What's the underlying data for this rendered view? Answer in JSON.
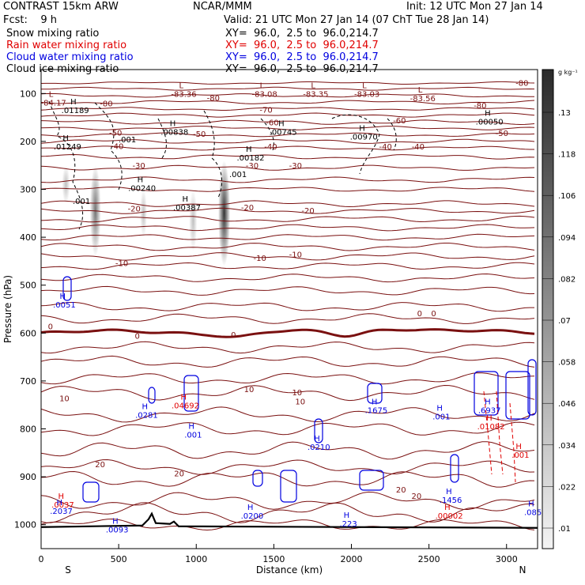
{
  "header": {
    "model": "CONTRAST 15km ARW",
    "org": "NCAR/MMM",
    "init": "Init: 12 UTC Mon 27 Jan 14",
    "fcst": "Fcst:    9 h",
    "valid": "Valid: 21 UTC Mon 27 Jan 14 (07 ChT Tue 28 Jan 14)",
    "fields": [
      {
        "label": "Snow mixing ratio",
        "xy": "XY=  96.0,  2.5 to  96.0,214.7",
        "color": "#000000"
      },
      {
        "label": "Rain water mixing ratio",
        "xy": "XY=  96.0,  2.5 to  96.0,214.7",
        "color": "#e00000"
      },
      {
        "label": "Cloud water mixing ratio",
        "xy": "XY=  96.0,  2.5 to  96.0,214.7",
        "color": "#0000e0"
      },
      {
        "label": "Cloud ice mixing ratio",
        "xy": "XY=  96.0,  2.5 to  96.0,214.7",
        "color": "#000000"
      }
    ]
  },
  "chart_data": {
    "type": "heatmap",
    "xlabel": "Distance (km)",
    "ylabel": "Pressure (hPa)",
    "xlim": [
      0,
      3200
    ],
    "ylim": [
      1050,
      50
    ],
    "x_ticks": [
      0,
      500,
      1000,
      1500,
      2000,
      2500,
      3000
    ],
    "y_ticks": [
      100,
      200,
      300,
      400,
      500,
      600,
      700,
      800,
      900,
      1000
    ],
    "x_end_labels": {
      "left": "S",
      "right": "N"
    },
    "colorbar": {
      "unit": "g kg⁻¹",
      "ticks": [
        ".01",
        ".022",
        ".034",
        ".046",
        ".058",
        ".07",
        ".082",
        ".094",
        ".106",
        ".118",
        ".13"
      ]
    },
    "temperature_contours": {
      "color": "#7a1010",
      "levels": [
        -80,
        -70,
        -60,
        -50,
        -40,
        -30,
        -20,
        -10,
        0,
        10,
        20
      ],
      "labels": [
        {
          "text": "-80",
          "x": 420,
          "p": 127
        },
        {
          "text": "-80",
          "x": 1110,
          "p": 115
        },
        {
          "text": "-80",
          "x": 2830,
          "p": 131
        },
        {
          "text": "-80",
          "x": 3100,
          "p": 84
        },
        {
          "text": "-70",
          "x": 1450,
          "p": 140
        },
        {
          "text": "-60",
          "x": 1490,
          "p": 166
        },
        {
          "text": "-60",
          "x": 2310,
          "p": 162
        },
        {
          "text": "-50",
          "x": 480,
          "p": 188
        },
        {
          "text": "-50",
          "x": 1020,
          "p": 190
        },
        {
          "text": "-50",
          "x": 2970,
          "p": 189
        },
        {
          "text": "-40",
          "x": 490,
          "p": 216
        },
        {
          "text": "-40",
          "x": 1480,
          "p": 217
        },
        {
          "text": "-40",
          "x": 2220,
          "p": 217
        },
        {
          "text": "-40",
          "x": 2430,
          "p": 217
        },
        {
          "text": "-30",
          "x": 630,
          "p": 256
        },
        {
          "text": "-30",
          "x": 1360,
          "p": 256
        },
        {
          "text": "-30",
          "x": 1640,
          "p": 256
        },
        {
          "text": "-20",
          "x": 600,
          "p": 346
        },
        {
          "text": "-20",
          "x": 1330,
          "p": 344
        },
        {
          "text": "-20",
          "x": 1720,
          "p": 350
        },
        {
          "text": "-10",
          "x": 520,
          "p": 460
        },
        {
          "text": "-10",
          "x": 1410,
          "p": 449
        },
        {
          "text": "-10",
          "x": 1640,
          "p": 442
        },
        {
          "text": "0",
          "x": 60,
          "p": 592
        },
        {
          "text": "0",
          "x": 620,
          "p": 612
        },
        {
          "text": "0",
          "x": 1240,
          "p": 609
        },
        {
          "text": "0",
          "x": 2440,
          "p": 565
        },
        {
          "text": "0",
          "x": 2530,
          "p": 565
        },
        {
          "text": "10",
          "x": 150,
          "p": 742
        },
        {
          "text": "10",
          "x": 1340,
          "p": 723
        },
        {
          "text": "10",
          "x": 1650,
          "p": 730
        },
        {
          "text": "10",
          "x": 1670,
          "p": 749
        },
        {
          "text": "20",
          "x": 380,
          "p": 880
        },
        {
          "text": "20",
          "x": 890,
          "p": 899
        },
        {
          "text": "20",
          "x": 2320,
          "p": 933
        },
        {
          "text": "20",
          "x": 2420,
          "p": 946
        }
      ]
    },
    "extrema": [
      {
        "kind": "L",
        "value": "-84.17",
        "x": 80,
        "p": 125,
        "color": "#7a1010"
      },
      {
        "kind": "L",
        "value": "-83.36",
        "x": 920,
        "p": 107,
        "color": "#7a1010"
      },
      {
        "kind": "L",
        "value": "-83.08",
        "x": 1440,
        "p": 107,
        "color": "#7a1010"
      },
      {
        "kind": "L",
        "value": "-83.35",
        "x": 1770,
        "p": 107,
        "color": "#7a1010"
      },
      {
        "kind": "L",
        "value": "-83.03",
        "x": 2100,
        "p": 107,
        "color": "#7a1010"
      },
      {
        "kind": "L",
        "value": "-83.56",
        "x": 2460,
        "p": 116,
        "color": "#7a1010"
      },
      {
        "kind": "H",
        "value": ".01189",
        "x": 220,
        "p": 141,
        "color": "#000000"
      },
      {
        "kind": "H",
        "value": ".00838",
        "x": 860,
        "p": 186,
        "color": "#000000"
      },
      {
        "kind": "H",
        "value": ".00745",
        "x": 1560,
        "p": 186,
        "color": "#000000"
      },
      {
        "kind": "H",
        "value": ".00970",
        "x": 2080,
        "p": 196,
        "color": "#000000"
      },
      {
        "kind": "H",
        "value": ".00050",
        "x": 2890,
        "p": 165,
        "color": "#000000"
      },
      {
        "kind": "H",
        "value": ".01249",
        "x": 170,
        "p": 217,
        "color": "#000000"
      },
      {
        "kind": "H",
        "value": ".00182",
        "x": 1350,
        "p": 240,
        "color": "#000000"
      },
      {
        "kind": "H",
        "value": ".00240",
        "x": 650,
        "p": 303,
        "color": "#000000"
      },
      {
        "kind": "H",
        "value": ".00387",
        "x": 940,
        "p": 344,
        "color": "#000000"
      },
      {
        "kind": "H",
        "value": ".0051",
        "x": 150,
        "p": 547,
        "color": "#0000e0"
      },
      {
        "kind": "H",
        "value": ".0281",
        "x": 680,
        "p": 777,
        "color": "#0000e0"
      },
      {
        "kind": "H",
        "value": ".04692",
        "x": 930,
        "p": 757,
        "color": "#e00000"
      },
      {
        "kind": "H",
        "value": ".001",
        "x": 980,
        "p": 818,
        "color": "#0000e0"
      },
      {
        "kind": "H",
        "value": ".0210",
        "x": 1790,
        "p": 844,
        "color": "#0000e0"
      },
      {
        "kind": "H",
        "value": ".1675",
        "x": 2160,
        "p": 767,
        "color": "#0000e0"
      },
      {
        "kind": "H",
        "value": ".001",
        "x": 2580,
        "p": 780,
        "color": "#0000e0"
      },
      {
        "kind": "H",
        "value": ".6937",
        "x": 2890,
        "p": 767,
        "color": "#0000e0"
      },
      {
        "kind": "H",
        "value": ".01082",
        "x": 2900,
        "p": 801,
        "color": "#e00000"
      },
      {
        "kind": "H",
        "value": ".001",
        "x": 3090,
        "p": 860,
        "color": "#e00000"
      },
      {
        "kind": "H",
        "value": ".1456",
        "x": 2640,
        "p": 954,
        "color": "#0000e0"
      },
      {
        "kind": "H",
        "value": ".00002",
        "x": 2630,
        "p": 987,
        "color": "#e00000"
      },
      {
        "kind": "H",
        "value": ".0037",
        "x": 140,
        "p": 964,
        "color": "#e00000"
      },
      {
        "kind": "H",
        "value": ".2037",
        "x": 130,
        "p": 977,
        "color": "#0000e0"
      },
      {
        "kind": "H",
        "value": ".0093",
        "x": 490,
        "p": 1016,
        "color": "#0000e0"
      },
      {
        "kind": "H",
        "value": ".0200",
        "x": 1360,
        "p": 987,
        "color": "#0000e0"
      },
      {
        "kind": "H",
        "value": ".223",
        "x": 1980,
        "p": 1004,
        "color": "#0000e0"
      },
      {
        "kind": "H",
        "value": ".085",
        "x": 3170,
        "p": 980,
        "color": "#0000e0"
      }
    ],
    "snow_features": [
      {
        "x": 350,
        "p_top": 250,
        "p_bot": 440,
        "width": 55,
        "intensity": 0.55
      },
      {
        "x": 660,
        "p_top": 300,
        "p_bot": 400,
        "width": 35,
        "intensity": 0.25
      },
      {
        "x": 980,
        "p_top": 300,
        "p_bot": 430,
        "width": 40,
        "intensity": 0.25
      },
      {
        "x": 1180,
        "p_top": 240,
        "p_bot": 460,
        "width": 60,
        "intensity": 0.8
      },
      {
        "x": 160,
        "p_top": 250,
        "p_bot": 330,
        "width": 40,
        "intensity": 0.25
      }
    ],
    "ice_contour_label": ".001",
    "terrain_surface_hPa": 1005
  }
}
